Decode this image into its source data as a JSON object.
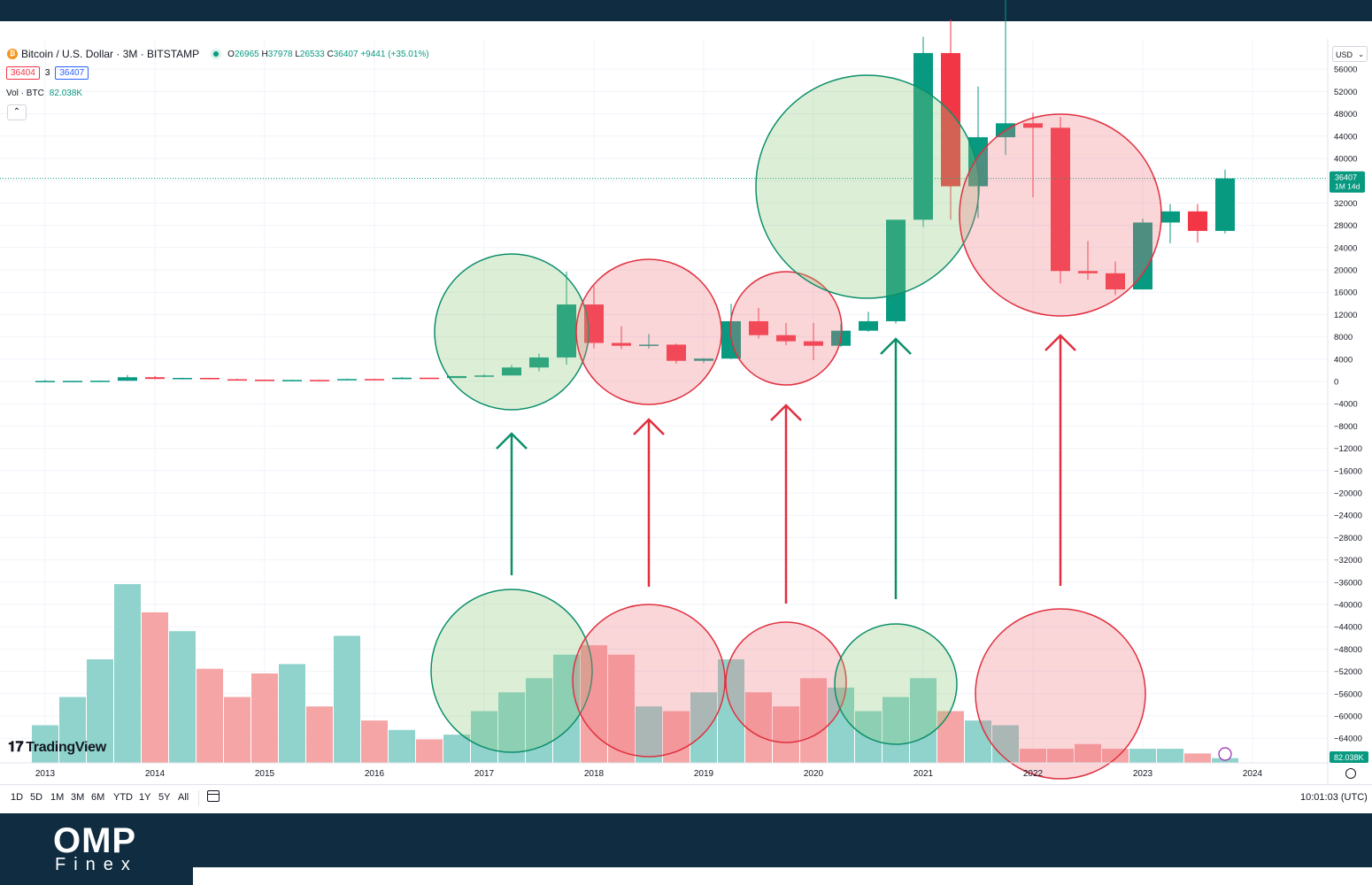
{
  "header": {
    "symbol": "Bitcoin / U.S. Dollar · 3M · BITSTAMP",
    "icon": "btc-icon",
    "ohlc": {
      "o": "26965",
      "h": "37978",
      "l": "26533",
      "c": "36407",
      "change": "+9441 (+35.01%)"
    },
    "bid": "36404",
    "spread": "3",
    "ask": "36407",
    "vol_label": "Vol · BTC",
    "vol_value": "82.038K",
    "collapse_glyph": "⌃"
  },
  "currency_select": "USD",
  "branding": {
    "tradingview": "TradingView",
    "footer_logo": "OMP",
    "footer_sub": "Finex"
  },
  "toolbar": {
    "timeframes": [
      "1D",
      "5D",
      "1M",
      "3M",
      "6M",
      "YTD",
      "1Y",
      "5Y",
      "All"
    ],
    "clock": "10:01:03 (UTC)"
  },
  "colors": {
    "up": "#089981",
    "down": "#f23645",
    "up_vol": "#8fd3cc",
    "down_vol": "#f5a5a5",
    "frame": "#0f2c40"
  },
  "chart_data": {
    "type": "candlestick",
    "x_ticks": [
      "2013",
      "2014",
      "2015",
      "2016",
      "2017",
      "2018",
      "2019",
      "2020",
      "2021",
      "2022",
      "2023",
      "2024"
    ],
    "y_ticks": [
      "56000",
      "52000",
      "48000",
      "44000",
      "40000",
      "36000",
      "32000",
      "28000",
      "24000",
      "20000",
      "16000",
      "12000",
      "8000",
      "4000",
      "0",
      "−4000",
      "−8000",
      "−12000",
      "−16000",
      "−20000",
      "−24000",
      "−28000",
      "−32000",
      "−36000",
      "−40000",
      "−44000",
      "−48000",
      "−52000",
      "−56000",
      "−60000",
      "−64000"
    ],
    "ylim": [
      -69000,
      59000
    ],
    "last_price_label": "36407",
    "last_price_countdown": "1M 14d",
    "last_price": 36407,
    "volume_label": "82.038K",
    "candles": [
      {
        "t": 2013.0,
        "o": 13,
        "h": 266,
        "l": 13,
        "c": 93
      },
      {
        "t": 2013.25,
        "o": 93,
        "h": 120,
        "l": 65,
        "c": 97
      },
      {
        "t": 2013.5,
        "o": 97,
        "h": 150,
        "l": 80,
        "c": 130
      },
      {
        "t": 2013.75,
        "o": 130,
        "h": 1160,
        "l": 120,
        "c": 750
      },
      {
        "t": 2014.0,
        "o": 750,
        "h": 1000,
        "l": 400,
        "c": 450
      },
      {
        "t": 2014.25,
        "o": 450,
        "h": 680,
        "l": 350,
        "c": 630
      },
      {
        "t": 2014.5,
        "o": 630,
        "h": 650,
        "l": 380,
        "c": 390
      },
      {
        "t": 2014.75,
        "o": 390,
        "h": 480,
        "l": 270,
        "c": 320
      },
      {
        "t": 2015.0,
        "o": 320,
        "h": 330,
        "l": 160,
        "c": 245
      },
      {
        "t": 2015.25,
        "o": 245,
        "h": 270,
        "l": 220,
        "c": 265
      },
      {
        "t": 2015.5,
        "o": 265,
        "h": 320,
        "l": 200,
        "c": 235
      },
      {
        "t": 2015.75,
        "o": 235,
        "h": 500,
        "l": 230,
        "c": 430
      },
      {
        "t": 2016.0,
        "o": 430,
        "h": 470,
        "l": 360,
        "c": 415
      },
      {
        "t": 2016.25,
        "o": 415,
        "h": 780,
        "l": 410,
        "c": 670
      },
      {
        "t": 2016.5,
        "o": 670,
        "h": 700,
        "l": 500,
        "c": 610
      },
      {
        "t": 2016.75,
        "o": 610,
        "h": 980,
        "l": 600,
        "c": 960
      },
      {
        "t": 2017.0,
        "o": 960,
        "h": 1300,
        "l": 750,
        "c": 1070
      },
      {
        "t": 2017.25,
        "o": 1070,
        "h": 2950,
        "l": 1060,
        "c": 2500
      },
      {
        "t": 2017.5,
        "o": 2500,
        "h": 5000,
        "l": 1800,
        "c": 4300
      },
      {
        "t": 2017.75,
        "o": 4300,
        "h": 19700,
        "l": 3000,
        "c": 13800
      },
      {
        "t": 2018.0,
        "o": 13800,
        "h": 17200,
        "l": 5900,
        "c": 6900
      },
      {
        "t": 2018.25,
        "o": 6900,
        "h": 9900,
        "l": 5800,
        "c": 6400
      },
      {
        "t": 2018.5,
        "o": 6400,
        "h": 8500,
        "l": 5900,
        "c": 6600
      },
      {
        "t": 2018.75,
        "o": 6600,
        "h": 6800,
        "l": 3200,
        "c": 3700
      },
      {
        "t": 2019.0,
        "o": 3700,
        "h": 4200,
        "l": 3300,
        "c": 4100
      },
      {
        "t": 2019.25,
        "o": 4100,
        "h": 13900,
        "l": 4000,
        "c": 10800
      },
      {
        "t": 2019.5,
        "o": 10800,
        "h": 13200,
        "l": 7700,
        "c": 8300
      },
      {
        "t": 2019.75,
        "o": 8300,
        "h": 10500,
        "l": 6500,
        "c": 7200
      },
      {
        "t": 2020.0,
        "o": 7200,
        "h": 10500,
        "l": 3800,
        "c": 6400
      },
      {
        "t": 2020.25,
        "o": 6400,
        "h": 10400,
        "l": 6200,
        "c": 9100
      },
      {
        "t": 2020.5,
        "o": 9100,
        "h": 12500,
        "l": 8900,
        "c": 10800
      },
      {
        "t": 2020.75,
        "o": 10800,
        "h": 29000,
        "l": 10400,
        "c": 29000
      },
      {
        "t": 2021.0,
        "o": 29000,
        "h": 61800,
        "l": 27700,
        "c": 58900
      },
      {
        "t": 2021.25,
        "o": 58900,
        "h": 64900,
        "l": 29000,
        "c": 35000
      },
      {
        "t": 2021.5,
        "o": 35000,
        "h": 52900,
        "l": 29300,
        "c": 43800
      },
      {
        "t": 2021.75,
        "o": 43800,
        "h": 69000,
        "l": 40600,
        "c": 46300
      },
      {
        "t": 2022.0,
        "o": 46300,
        "h": 48200,
        "l": 33000,
        "c": 45500
      },
      {
        "t": 2022.25,
        "o": 45500,
        "h": 47400,
        "l": 17600,
        "c": 19800
      },
      {
        "t": 2022.5,
        "o": 19800,
        "h": 25200,
        "l": 18200,
        "c": 19400
      },
      {
        "t": 2022.75,
        "o": 19400,
        "h": 21500,
        "l": 15500,
        "c": 16500
      },
      {
        "t": 2023.0,
        "o": 16500,
        "h": 29200,
        "l": 16500,
        "c": 28500
      },
      {
        "t": 2023.25,
        "o": 28500,
        "h": 31800,
        "l": 24800,
        "c": 30500
      },
      {
        "t": 2023.5,
        "o": 30500,
        "h": 31800,
        "l": 24900,
        "c": 27000
      },
      {
        "t": 2023.75,
        "o": 27000,
        "h": 37978,
        "l": 26533,
        "c": 36407
      }
    ],
    "volume": [
      8,
      14,
      22,
      38,
      32,
      28,
      20,
      14,
      19,
      21,
      12,
      27,
      9,
      7,
      5,
      6,
      11,
      15,
      18,
      23,
      25,
      23,
      12,
      11,
      15,
      22,
      15,
      12,
      18,
      16,
      11,
      14,
      18,
      11,
      9,
      8,
      3,
      3,
      4,
      3,
      3,
      3,
      2,
      1
    ],
    "circle_annotations": [
      {
        "kind": "bullish",
        "t": 2017.25,
        "price": 0
      },
      {
        "kind": "bearish",
        "t": 2018.5,
        "price": 0
      },
      {
        "kind": "bearish",
        "t": 2019.75,
        "price": 0
      },
      {
        "kind": "bullish",
        "t": 2020.75,
        "price": 0
      },
      {
        "kind": "bearish",
        "t": 2022.25,
        "price": 0
      }
    ]
  }
}
